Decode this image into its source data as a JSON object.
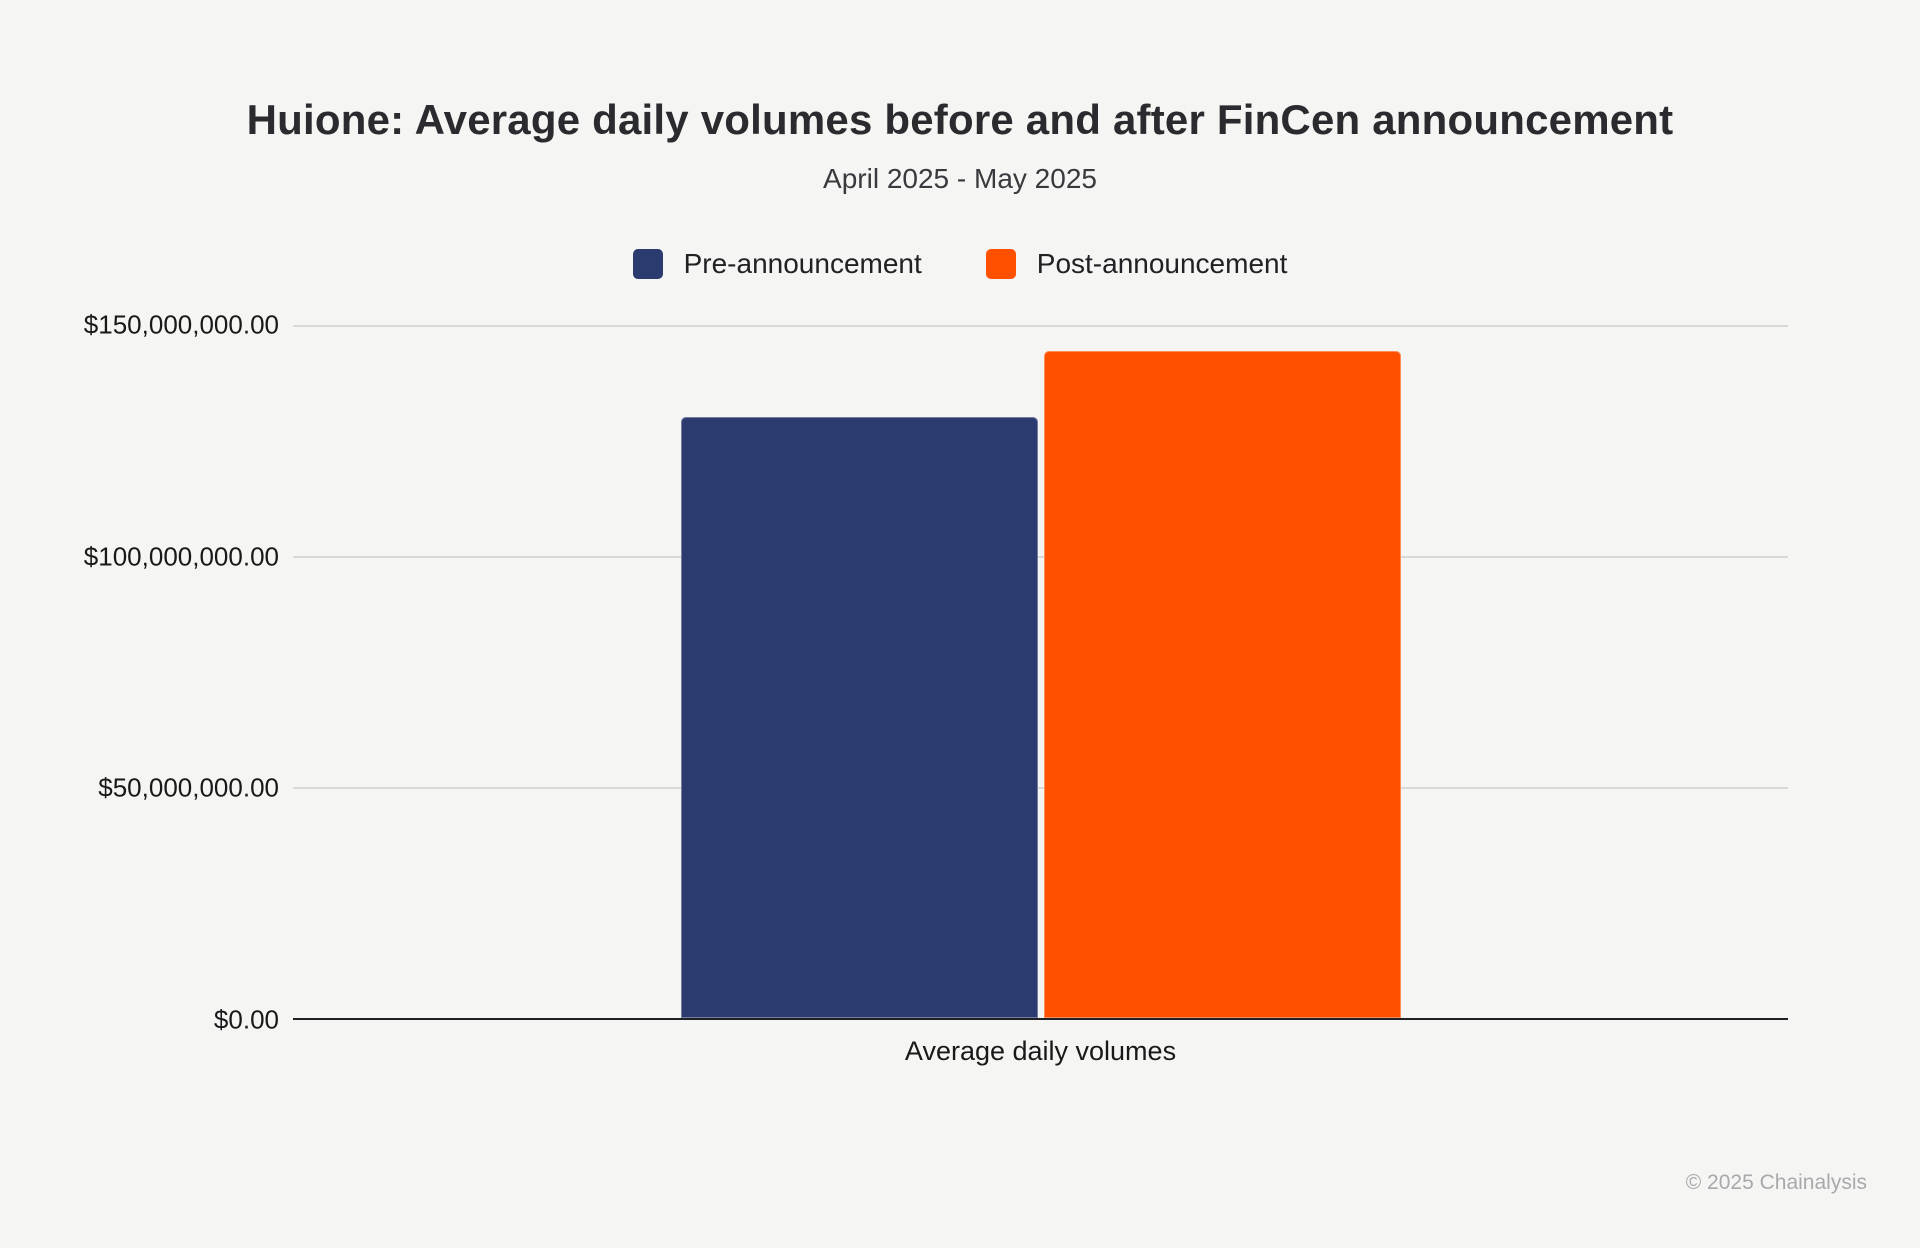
{
  "page": {
    "background_color": "#f5f5f3"
  },
  "header": {
    "title": "Huione: Average daily volumes before and after FinCen announcement",
    "subtitle": "April 2025 - May 2025"
  },
  "legend": {
    "items": [
      {
        "label": "Pre-announcement",
        "color": "#2b3a6f"
      },
      {
        "label": "Post-announcement",
        "color": "#ff5000"
      }
    ]
  },
  "chart_data": {
    "type": "bar",
    "title": "Huione: Average daily volumes before and after FinCen announcement",
    "subtitle": "April 2025 - May 2025",
    "categories": [
      "Average daily volumes"
    ],
    "series": [
      {
        "name": "Pre-announcement",
        "color": "#2b3a6f",
        "values": [
          130000000
        ]
      },
      {
        "name": "Post-announcement",
        "color": "#ff5000",
        "values": [
          144400000
        ]
      }
    ],
    "xlabel": "Average daily volumes",
    "ylabel": "",
    "ylim": [
      0,
      150000000
    ],
    "ytick_interval": 50000000,
    "yticks": [
      {
        "value": 150000000,
        "label": "$150,000,000.00"
      },
      {
        "value": 100000000,
        "label": "$100,000,000.00"
      },
      {
        "value": 50000000,
        "label": "$50,000,000.00"
      },
      {
        "value": 0,
        "label": "$0.00"
      }
    ],
    "grid": true,
    "legend_position": "top",
    "baseline_color": "#202124",
    "gridline_color": "#d9d9d8"
  },
  "footer": {
    "copyright": "© 2025 Chainalysis"
  }
}
